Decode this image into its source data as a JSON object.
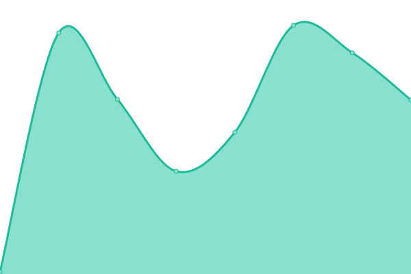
{
  "chart_data": {
    "type": "area",
    "x": [
      0,
      1,
      2,
      3,
      4,
      5,
      6,
      7
    ],
    "values": [
      3,
      352,
      255,
      150,
      207,
      363,
      323,
      254
    ],
    "ylim": [
      0,
      400
    ],
    "grid": false,
    "axes_visible": false,
    "curve": "smooth",
    "colors": {
      "fill": "#89e0cf",
      "line": "#1dbb99",
      "point_fill": "#89e0cf"
    }
  }
}
